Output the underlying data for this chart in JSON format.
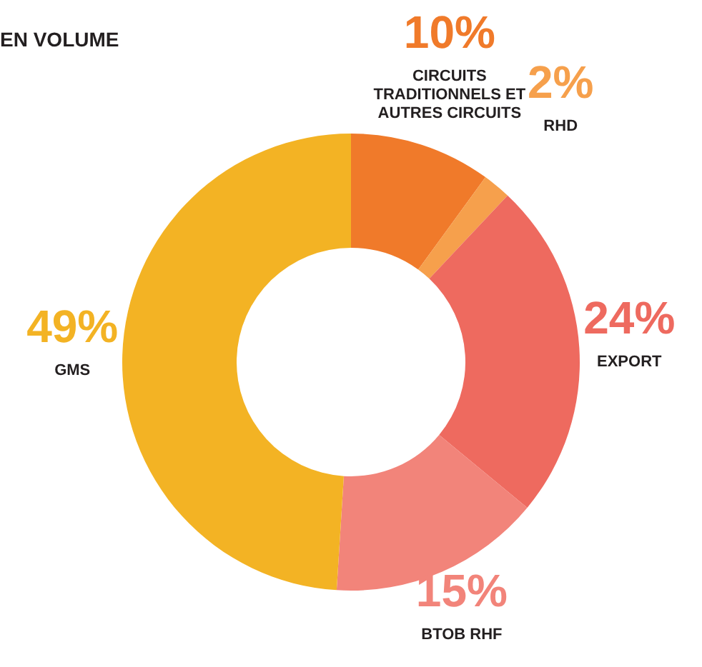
{
  "chart_data": {
    "type": "donut",
    "title": "EN VOLUME",
    "categories": [
      "CIRCUITS TRADITIONNELS ET AUTRES CIRCUITS",
      "RHD",
      "EXPORT",
      "BTOB RHF",
      "GMS"
    ],
    "values": [
      10,
      2,
      24,
      15,
      49
    ],
    "value_labels": [
      "10%",
      "2%",
      "24%",
      "15%",
      "49%"
    ],
    "colors": [
      "#f07a2a",
      "#f6a04c",
      "#ee6a5f",
      "#f2847a",
      "#f3b324"
    ]
  }
}
